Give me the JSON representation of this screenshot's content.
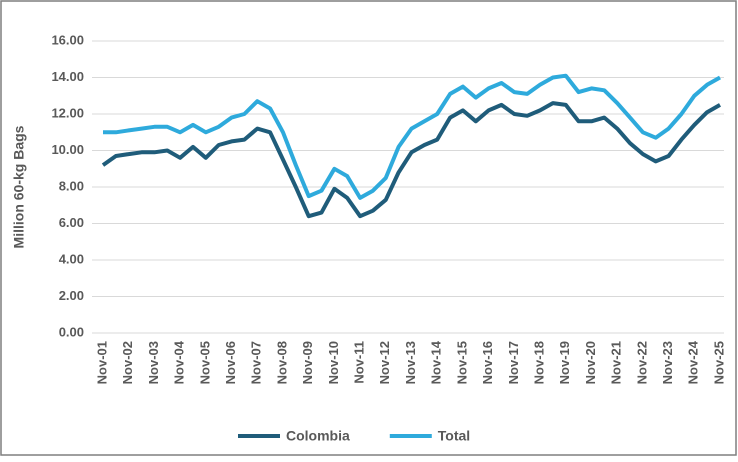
{
  "chart_data": {
    "type": "line",
    "y_label": "Million 60-kg Bags",
    "categories": [
      "Nov-01",
      null,
      "Nov-02",
      null,
      "Nov-03",
      null,
      "Nov-04",
      null,
      "Nov-05",
      null,
      "Nov-06",
      null,
      "Nov-07",
      null,
      "Nov-08",
      null,
      "Nov-09",
      null,
      "Nov-10",
      null,
      "Nov-11",
      null,
      "Nov-12",
      null,
      "Nov-13",
      null,
      "Nov-14",
      null,
      "Nov-15",
      null,
      "Nov-16",
      null,
      "Nov-17",
      null,
      "Nov-18",
      null,
      "Nov-19",
      null,
      "Nov-20",
      null,
      "Nov-21",
      null,
      "Nov-22",
      null,
      "Nov-23",
      null,
      "Nov-24",
      null,
      "Nov-25"
    ],
    "series": [
      {
        "name": "Colombia",
        "color": "#1f5c7a",
        "values": [
          9.2,
          9.7,
          9.8,
          9.9,
          9.9,
          10.0,
          9.6,
          10.2,
          9.6,
          10.3,
          10.5,
          10.6,
          11.2,
          11.0,
          9.5,
          8.0,
          6.4,
          6.6,
          7.9,
          7.4,
          6.4,
          6.7,
          7.3,
          8.8,
          9.9,
          10.3,
          10.6,
          11.8,
          12.2,
          11.6,
          12.2,
          12.5,
          12.0,
          11.9,
          12.2,
          12.6,
          12.5,
          11.6,
          11.6,
          11.8,
          11.2,
          10.4,
          9.8,
          9.4,
          9.7,
          10.6,
          11.4,
          12.1,
          12.5
        ]
      },
      {
        "name": "Total",
        "color": "#2eaadc",
        "values": [
          11.0,
          11.0,
          11.1,
          11.2,
          11.3,
          11.3,
          11.0,
          11.4,
          11.0,
          11.3,
          11.8,
          12.0,
          12.7,
          12.3,
          11.0,
          9.2,
          7.5,
          7.8,
          9.0,
          8.6,
          7.4,
          7.8,
          8.5,
          10.2,
          11.2,
          11.6,
          12.0,
          13.1,
          13.5,
          12.9,
          13.4,
          13.7,
          13.2,
          13.1,
          13.6,
          14.0,
          14.1,
          13.2,
          13.4,
          13.3,
          12.6,
          11.8,
          11.0,
          10.7,
          11.2,
          12.0,
          13.0,
          13.6,
          14.0
        ]
      }
    ],
    "ylim": [
      0,
      16
    ],
    "yticks": [
      {
        "value": 0,
        "label": "0.00"
      },
      {
        "value": 2,
        "label": "2.00"
      },
      {
        "value": 4,
        "label": "4.00"
      },
      {
        "value": 6,
        "label": "6.00"
      },
      {
        "value": 8,
        "label": "8.00"
      },
      {
        "value": 10,
        "label": "10.00"
      },
      {
        "value": 12,
        "label": "12.00"
      },
      {
        "value": 14,
        "label": "14.00"
      },
      {
        "value": 16,
        "label": "16.00"
      }
    ],
    "grid": true,
    "legend": "bottom"
  }
}
